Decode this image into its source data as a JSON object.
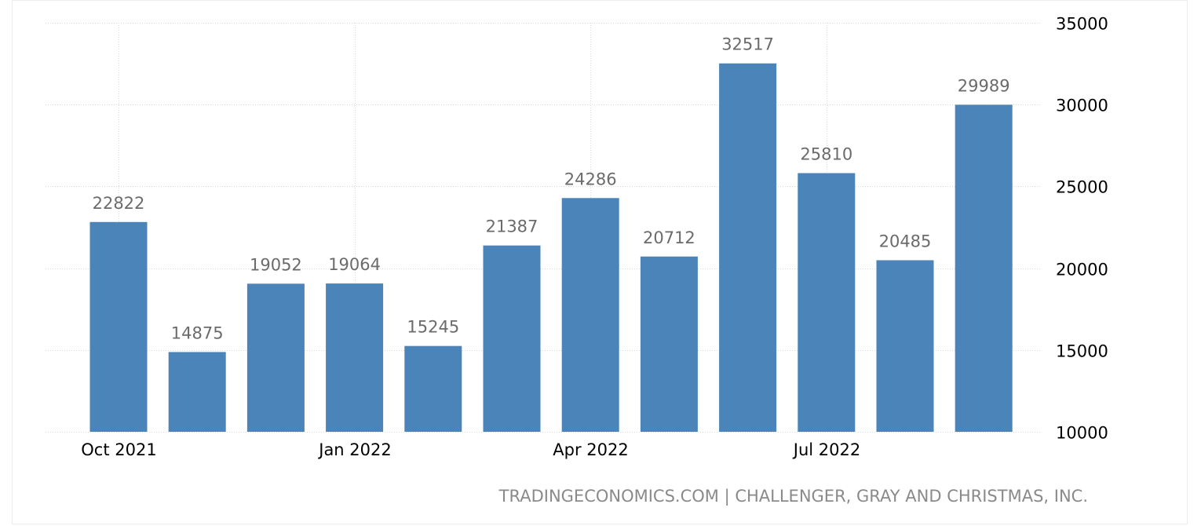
{
  "chart_data": {
    "type": "bar",
    "x_tick_labels": [
      "Oct 2021",
      "Jan 2022",
      "Apr 2022",
      "Jul 2022"
    ],
    "x": [
      "Oct 2021",
      "Nov 2021",
      "Dec 2021",
      "Jan 2022",
      "Feb 2022",
      "Mar 2022",
      "Apr 2022",
      "May 2022",
      "Jun 2022",
      "Jul 2022",
      "Aug 2022",
      "Sep 2022"
    ],
    "values": [
      22822,
      14875,
      19052,
      19064,
      15245,
      21387,
      24286,
      20712,
      32517,
      25810,
      20485,
      29989
    ],
    "ylim": [
      10000,
      35000
    ],
    "y_ticks": [
      10000,
      15000,
      20000,
      25000,
      30000,
      35000
    ],
    "y_axis_position": "right",
    "grid": true,
    "bar_color": "#4a84b8",
    "data_labels": true
  },
  "source_text": "TRADINGECONOMICS.COM | CHALLENGER, GRAY AND CHRISTMAS, INC."
}
